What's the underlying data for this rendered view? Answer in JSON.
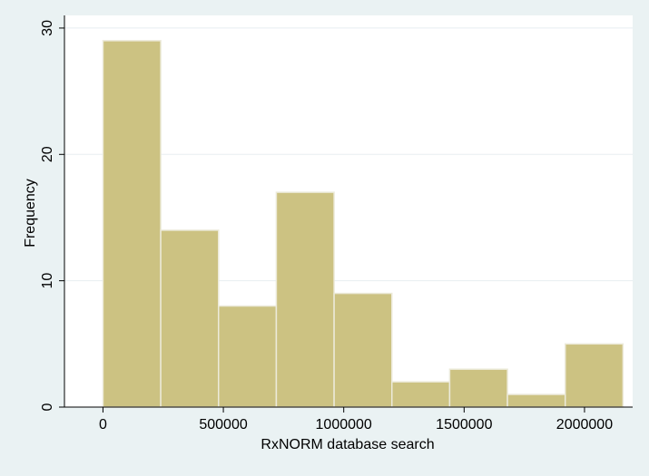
{
  "chart_data": {
    "type": "bar",
    "subtype": "histogram",
    "title": "",
    "xlabel": "RxNORM database search",
    "ylabel": "Frequency",
    "bin_edges": [
      0,
      240000,
      480000,
      720000,
      960000,
      1200000,
      1440000,
      1680000,
      1920000,
      2160000
    ],
    "values": [
      29,
      14,
      8,
      17,
      9,
      2,
      3,
      1,
      5
    ],
    "xlim": [
      -160000,
      2200000
    ],
    "ylim": [
      0,
      31
    ],
    "x_ticks": [
      0,
      500000,
      1000000,
      1500000,
      2000000
    ],
    "x_tick_labels": [
      "0",
      "500000",
      "1000000",
      "1500000",
      "2000000"
    ],
    "y_ticks": [
      0,
      10,
      20,
      30
    ],
    "y_tick_labels": [
      "0",
      "10",
      "20",
      "30"
    ],
    "grid": true,
    "colors": {
      "background": "#eaf2f3",
      "plot_background": "#ffffff",
      "bar_fill": "#ccc282",
      "bar_stroke": "#eceada",
      "grid": "#e8eef0"
    }
  }
}
